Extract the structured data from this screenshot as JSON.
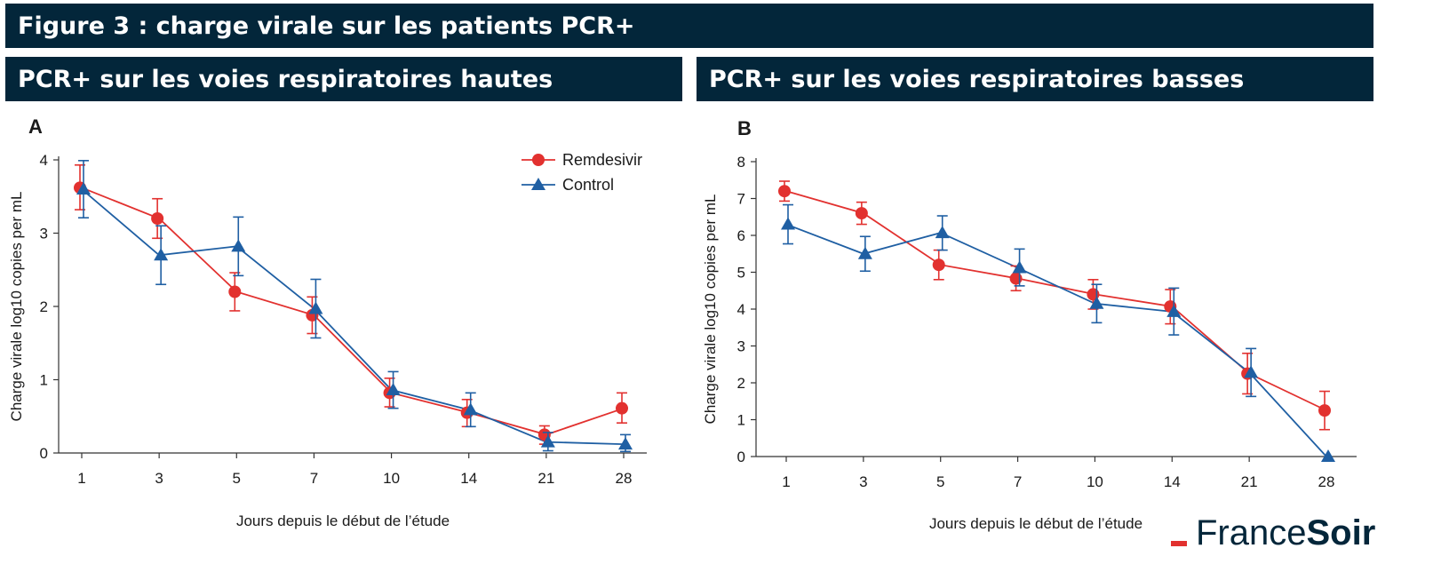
{
  "banner": {
    "figure_title": "Figure 3 : charge virale sur les patients PCR+",
    "panel_a_title": "PCR+ sur les voies respiratoires hautes",
    "panel_b_title": "PCR+ sur les voies respiratoires basses"
  },
  "colors": {
    "banner_bg": "#03263a",
    "remdesivir": "#e2312f",
    "control": "#1f5fa3",
    "logo_accent": "#e2312f"
  },
  "logo": {
    "part1": "France",
    "part2": "Soir"
  },
  "chart_data": [
    {
      "type": "line",
      "panel_label": "A",
      "xlabel": "Jours depuis le début de l’étude",
      "ylabel": "Charge virale log10 copies per mL",
      "categories": [
        "1",
        "3",
        "5",
        "7",
        "10",
        "14",
        "21",
        "28"
      ],
      "ylim": [
        0,
        4
      ],
      "yticks": [
        0,
        1,
        2,
        3,
        4
      ],
      "grid": false,
      "legend": "top-right",
      "series": [
        {
          "name": "Remdesivir",
          "marker": "circle",
          "values": [
            3.62,
            3.2,
            2.2,
            1.88,
            0.82,
            0.55,
            0.25,
            0.61
          ],
          "err_low": [
            3.32,
            2.93,
            1.94,
            1.63,
            0.63,
            0.36,
            0.12,
            0.41
          ],
          "err_high": [
            3.93,
            3.47,
            2.46,
            2.13,
            1.02,
            0.73,
            0.37,
            0.82
          ]
        },
        {
          "name": "Control",
          "marker": "triangle",
          "values": [
            3.6,
            2.7,
            2.82,
            1.97,
            0.86,
            0.59,
            0.15,
            0.12
          ],
          "err_low": [
            3.21,
            2.3,
            2.42,
            1.57,
            0.61,
            0.36,
            0.03,
            0.02
          ],
          "err_high": [
            3.99,
            3.1,
            3.22,
            2.37,
            1.11,
            0.82,
            0.28,
            0.25
          ]
        }
      ]
    },
    {
      "type": "line",
      "panel_label": "B",
      "xlabel": "Jours depuis le début de l’étude",
      "ylabel": "Charge virale log10 copies per mL",
      "categories": [
        "1",
        "3",
        "5",
        "7",
        "10",
        "14",
        "21",
        "28"
      ],
      "ylim": [
        0,
        8
      ],
      "yticks": [
        0,
        1,
        2,
        3,
        4,
        5,
        6,
        7,
        8
      ],
      "grid": false,
      "legend": "none",
      "series": [
        {
          "name": "Remdesivir",
          "marker": "circle",
          "values": [
            7.2,
            6.6,
            5.2,
            4.83,
            4.4,
            4.07,
            2.25,
            1.25
          ],
          "err_low": [
            6.93,
            6.3,
            4.8,
            4.5,
            4.0,
            3.6,
            1.7,
            0.73
          ],
          "err_high": [
            7.47,
            6.9,
            5.6,
            5.17,
            4.8,
            4.53,
            2.8,
            1.77
          ]
        },
        {
          "name": "Control",
          "marker": "triangle",
          "values": [
            6.3,
            5.5,
            6.07,
            5.12,
            4.15,
            3.93,
            2.28,
            0.0
          ],
          "err_low": [
            5.77,
            5.03,
            5.6,
            4.63,
            3.63,
            3.3,
            1.63,
            0.0
          ],
          "err_high": [
            6.83,
            5.97,
            6.53,
            5.63,
            4.67,
            4.57,
            2.93,
            0.0
          ]
        }
      ]
    }
  ]
}
